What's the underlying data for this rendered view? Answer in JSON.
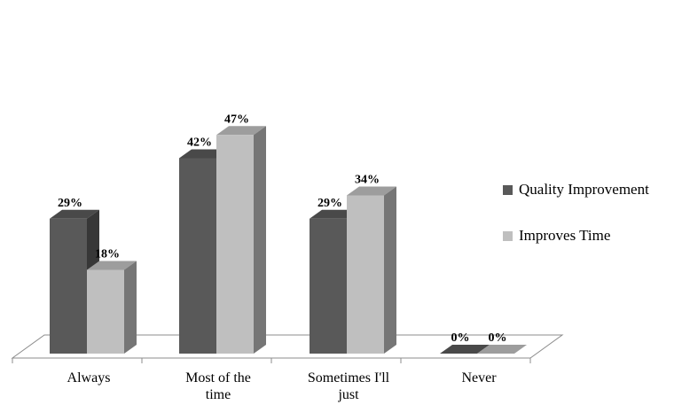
{
  "chart_data": {
    "type": "bar",
    "style": "3d-clustered-column",
    "categories": [
      [
        "Always"
      ],
      [
        "Most of the",
        "time"
      ],
      [
        "Sometimes I'll",
        "just"
      ],
      [
        "Never"
      ]
    ],
    "series": [
      {
        "name": "Quality Improvement",
        "values": [
          29,
          42,
          29,
          0
        ],
        "labels": [
          "29%",
          "42%",
          "29%",
          "0%"
        ],
        "color": "#595959"
      },
      {
        "name": "Improves Time",
        "values": [
          18,
          47,
          34,
          0
        ],
        "labels": [
          "18%",
          "47%",
          "34%",
          "0%"
        ],
        "color": "#bfbfbf"
      }
    ],
    "ylim": [
      0,
      55
    ],
    "unit": "%",
    "legend_position": "right",
    "grid": false
  }
}
